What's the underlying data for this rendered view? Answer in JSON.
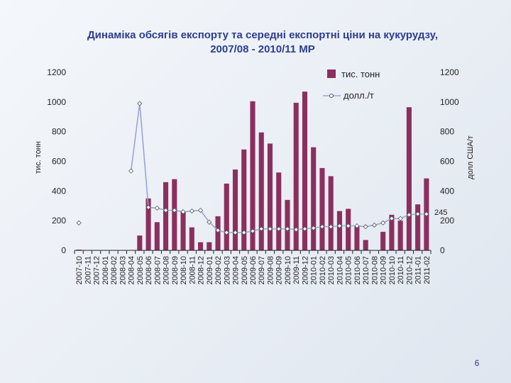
{
  "slide": {
    "title_line1": "Динаміка обсягів експорту та середні експортні ціни на кукурудзу,",
    "title_line2": "2007/08 - 2010/11 МР",
    "page_number": "6"
  },
  "colors": {
    "bar": "#8b2f5e",
    "line": "#9aa4d6",
    "marker_fill": "#ffffff",
    "axis": "#222222"
  },
  "chart_data": {
    "type": "bar+line",
    "title": "Динаміка обсягів експорту та середні експортні ціни на кукурудзу, 2007/08 - 2010/11 МР",
    "ylabel_left": "тис. тонн",
    "ylabel_right": "долл США/т",
    "ylim_left": [
      0,
      1200
    ],
    "ylim_right": [
      0,
      1200
    ],
    "yticks": [
      0,
      200,
      400,
      600,
      800,
      1000,
      1200
    ],
    "legend": {
      "position": "top-right",
      "bar_label": "тис. тонн",
      "line_label": "долл./т"
    },
    "annotation": "245",
    "categories": [
      "2007-10",
      "2007-11",
      "2007-12",
      "2008-01",
      "2008-02",
      "2008-03",
      "2008-04",
      "2008-05",
      "2008-06",
      "2008-07",
      "2008-08",
      "2008-09",
      "2008-10",
      "2008-11",
      "2008-12",
      "2009-01",
      "2009-02",
      "2009-03",
      "2009-04",
      "2009-05",
      "2009-06",
      "2009-07",
      "2009-08",
      "2009-09",
      "2009-10",
      "2009-11",
      "2009-12",
      "2010-01",
      "2010-02",
      "2010-03",
      "2010-04",
      "2010-05",
      "2010-06",
      "2010-07",
      "2010-08",
      "2010-09",
      "2010-10",
      "2010-11",
      "2010-12",
      "2011-01",
      "2011-02"
    ],
    "series": [
      {
        "name": "тис. тонн",
        "type": "bar",
        "axis": "left",
        "values": [
          5,
          0,
          0,
          0,
          0,
          0,
          0,
          100,
          350,
          190,
          460,
          480,
          260,
          155,
          55,
          55,
          230,
          450,
          545,
          680,
          1005,
          795,
          720,
          525,
          340,
          995,
          1070,
          695,
          555,
          500,
          265,
          280,
          160,
          70,
          0,
          125,
          240,
          200,
          965,
          310,
          485
        ]
      },
      {
        "name": "долл./т",
        "type": "line",
        "axis": "right",
        "values": [
          185,
          null,
          null,
          null,
          null,
          null,
          535,
          990,
          290,
          285,
          270,
          270,
          260,
          265,
          270,
          190,
          135,
          120,
          120,
          120,
          130,
          145,
          145,
          145,
          145,
          140,
          145,
          150,
          160,
          160,
          165,
          165,
          165,
          160,
          170,
          185,
          215,
          215,
          240,
          245,
          245
        ]
      }
    ]
  }
}
